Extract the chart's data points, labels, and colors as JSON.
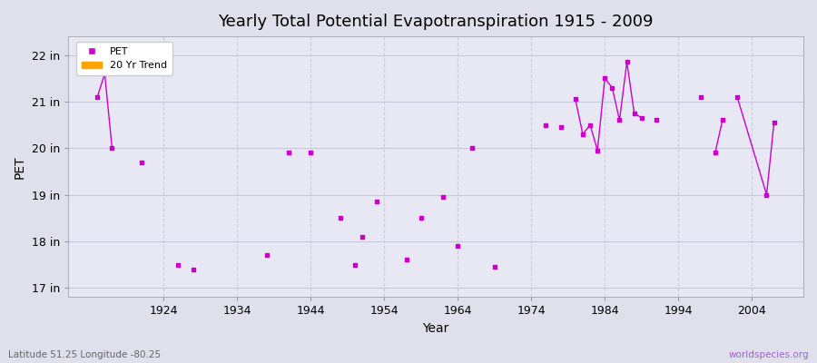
{
  "title": "Yearly Total Potential Evapotranspiration 1915 - 2009",
  "xlabel": "Year",
  "ylabel": "PET",
  "background_color": "#e0e0ec",
  "plot_bg_color": "#e8e8f4",
  "grid_color_h": "#c8c8dc",
  "grid_color_v": "#c8c8dc",
  "pet_color": "#cc00cc",
  "trend_color": "#ffa500",
  "ylim": [
    16.8,
    22.4
  ],
  "yticks": [
    17,
    18,
    19,
    20,
    21,
    22
  ],
  "ytick_labels": [
    "17 in",
    "18 in",
    "19 in",
    "20 in",
    "21 in",
    "22 in"
  ],
  "xlim": [
    1911,
    2011
  ],
  "xticks": [
    1924,
    1934,
    1944,
    1954,
    1964,
    1974,
    1984,
    1994,
    2004
  ],
  "footnote_left": "Latitude 51.25 Longitude -80.25",
  "footnote_right": "worldspecies.org",
  "legend_labels": [
    "PET",
    "20 Yr Trend"
  ],
  "pet_data": [
    [
      1915,
      21.1
    ],
    [
      1916,
      21.6
    ],
    [
      1917,
      20.0
    ],
    [
      1921,
      19.7
    ],
    [
      1926,
      17.5
    ],
    [
      1928,
      17.4
    ],
    [
      1938,
      17.7
    ],
    [
      1941,
      19.9
    ],
    [
      1944,
      19.9
    ],
    [
      1948,
      18.5
    ],
    [
      1950,
      17.5
    ],
    [
      1951,
      18.1
    ],
    [
      1953,
      18.85
    ],
    [
      1957,
      17.6
    ],
    [
      1959,
      18.5
    ],
    [
      1962,
      18.95
    ],
    [
      1964,
      17.9
    ],
    [
      1966,
      20.0
    ],
    [
      1969,
      17.45
    ],
    [
      1976,
      20.5
    ],
    [
      1978,
      20.45
    ],
    [
      1980,
      21.05
    ],
    [
      1981,
      20.3
    ],
    [
      1982,
      20.5
    ],
    [
      1983,
      19.95
    ],
    [
      1984,
      21.5
    ],
    [
      1985,
      21.3
    ],
    [
      1986,
      20.6
    ],
    [
      1987,
      21.85
    ],
    [
      1988,
      20.75
    ],
    [
      1989,
      20.65
    ],
    [
      1991,
      20.6
    ],
    [
      1997,
      21.1
    ],
    [
      1999,
      19.9
    ],
    [
      2000,
      20.6
    ],
    [
      2002,
      21.1
    ],
    [
      2006,
      19.0
    ],
    [
      2007,
      20.55
    ]
  ],
  "connected_segments": [
    [
      1915,
      1916,
      1917
    ],
    [
      1980,
      1981,
      1982,
      1983,
      1984,
      1985,
      1986,
      1987,
      1988,
      1989
    ],
    [
      1999,
      2000
    ],
    [
      2002,
      2006,
      2007
    ]
  ]
}
